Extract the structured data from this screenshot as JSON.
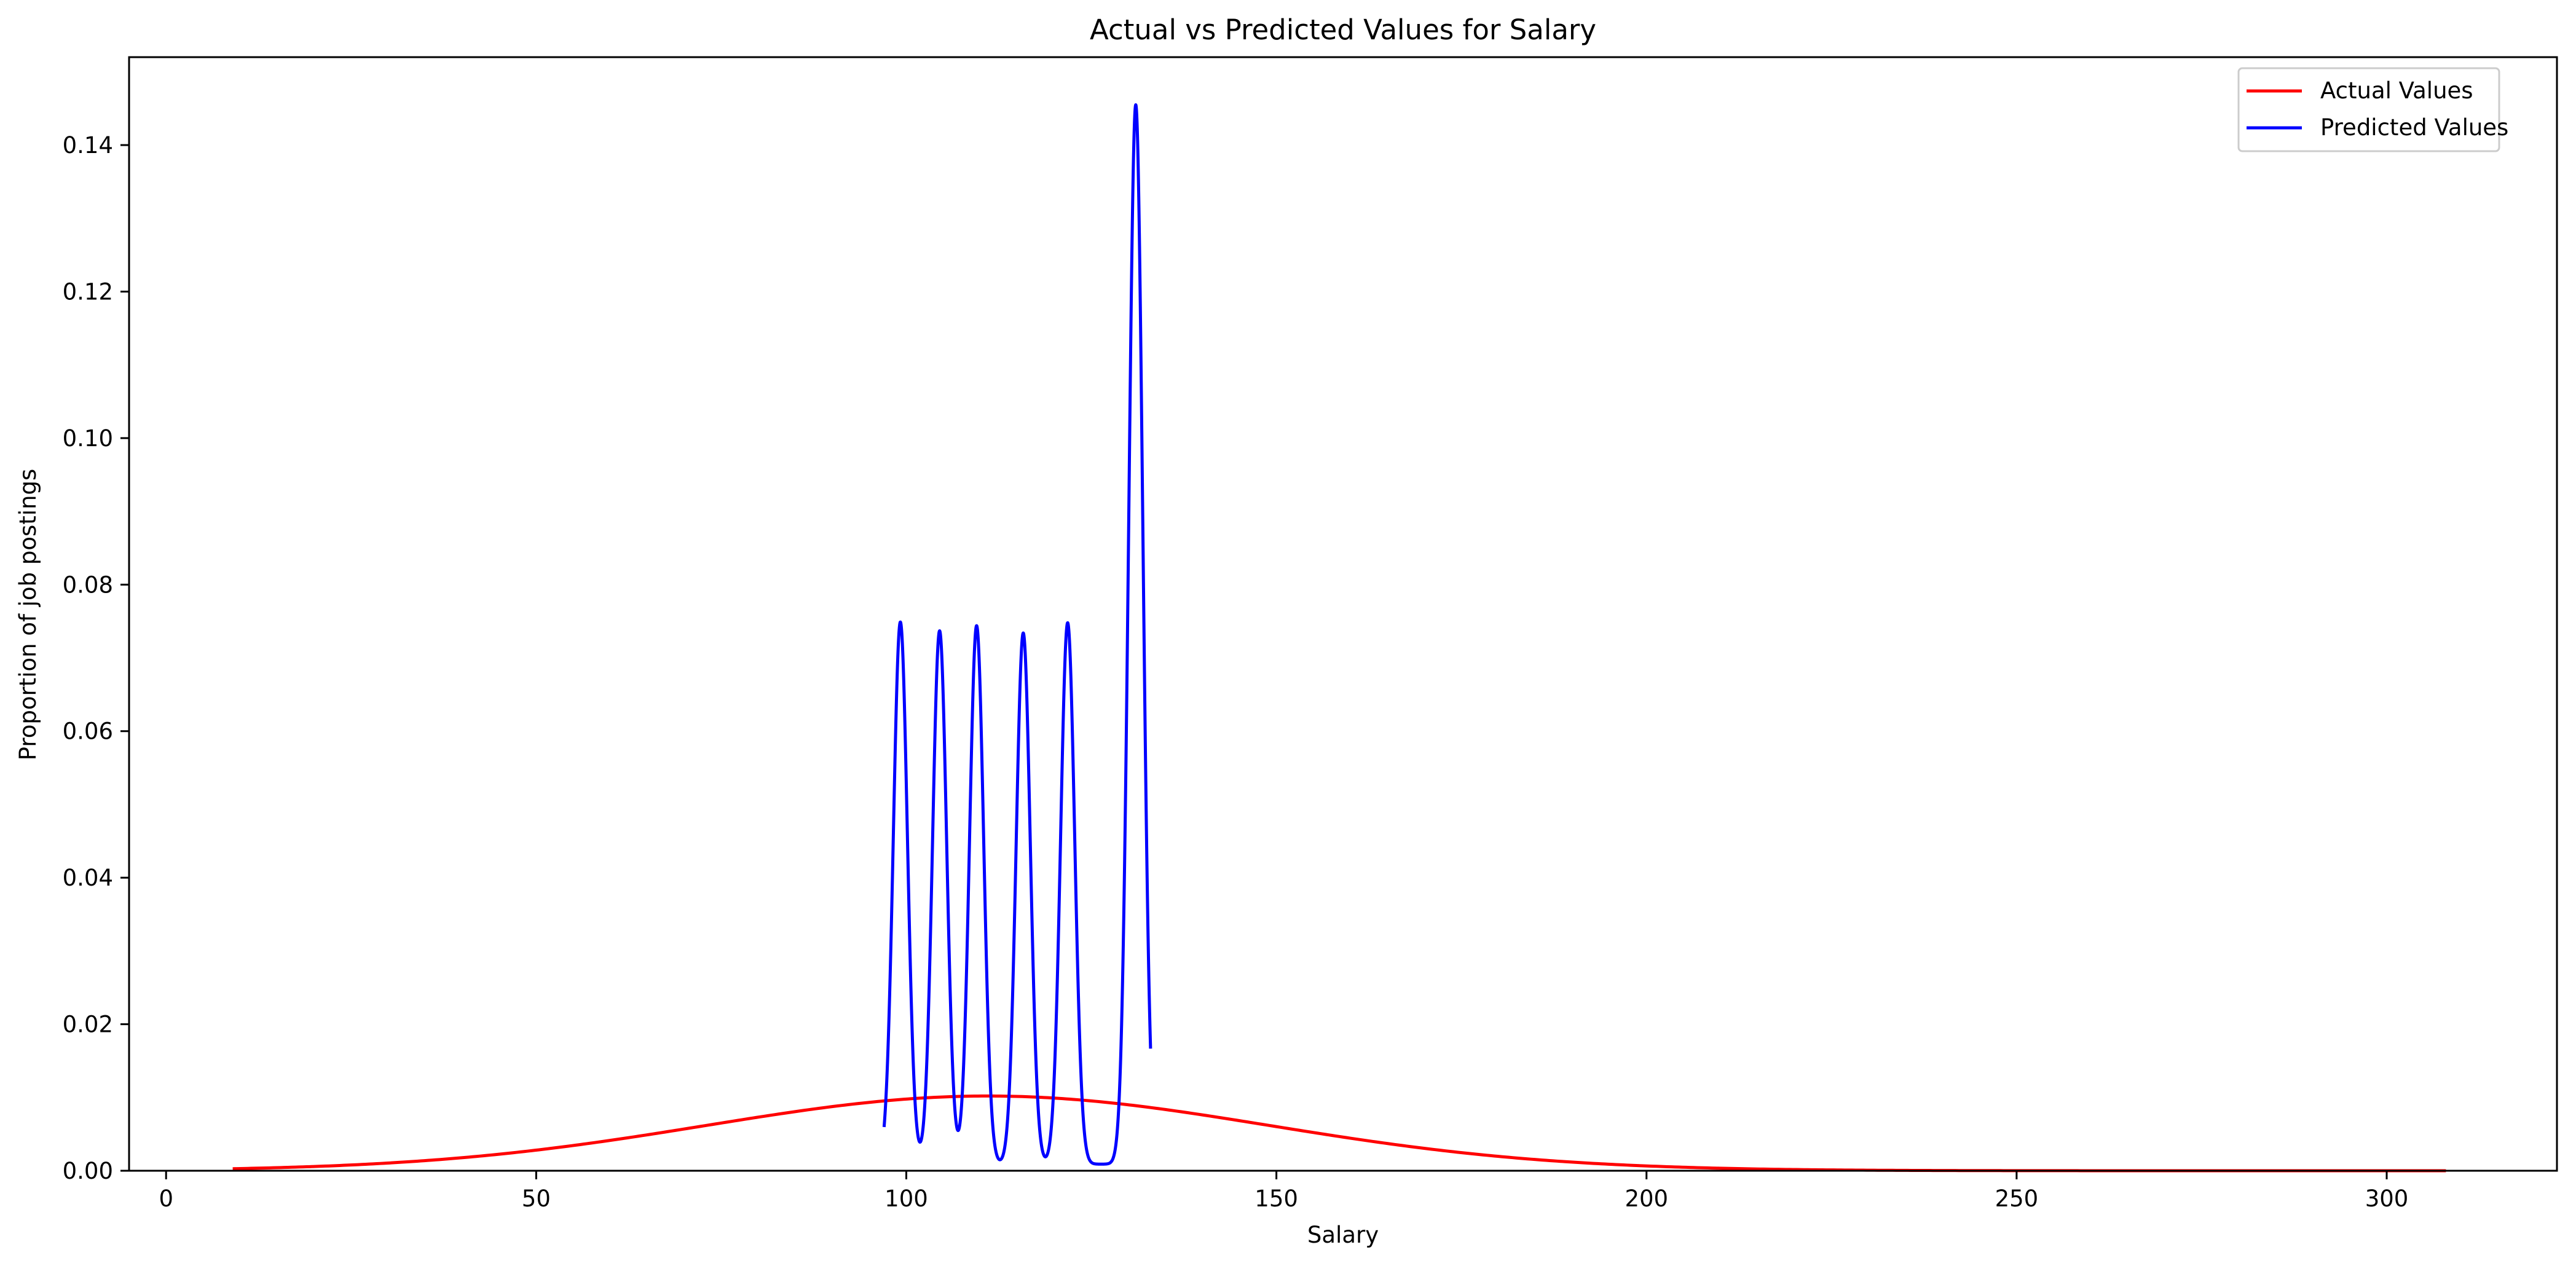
{
  "chart_data": {
    "type": "line",
    "title": "Actual vs Predicted Values for Salary",
    "xlabel": "Salary",
    "ylabel": "Proportion of job postings",
    "xlim": [
      -5,
      323
    ],
    "ylim": [
      0,
      0.152
    ],
    "x_ticks": [
      0,
      50,
      100,
      150,
      200,
      250,
      300
    ],
    "y_ticks": [
      0.0,
      0.02,
      0.04,
      0.06,
      0.08,
      0.1,
      0.12,
      0.14
    ],
    "x_tick_labels": [
      "0",
      "50",
      "100",
      "150",
      "200",
      "250",
      "300"
    ],
    "y_tick_labels": [
      "0.00",
      "0.02",
      "0.04",
      "0.06",
      "0.08",
      "0.10",
      "0.12",
      "0.14"
    ],
    "grid": false,
    "legend_position": "top-right",
    "series": [
      {
        "name": "Actual Values",
        "color": "#ff0000",
        "kind": "gaussian",
        "x_range": [
          9,
          308
        ],
        "mean": 111,
        "sd": 38,
        "peak": 0.0102
      },
      {
        "name": "Predicted Values",
        "color": "#0000ff",
        "kind": "gaussian_mixture",
        "x_range": [
          97,
          133
        ],
        "sd": 0.95,
        "components": [
          {
            "center": 99.2,
            "peak": 0.074
          },
          {
            "center": 104.5,
            "peak": 0.0728
          },
          {
            "center": 109.5,
            "peak": 0.0735
          },
          {
            "center": 115.8,
            "peak": 0.0725
          },
          {
            "center": 121.8,
            "peak": 0.0739
          },
          {
            "center": 131.0,
            "peak": 0.1446
          }
        ]
      }
    ]
  }
}
